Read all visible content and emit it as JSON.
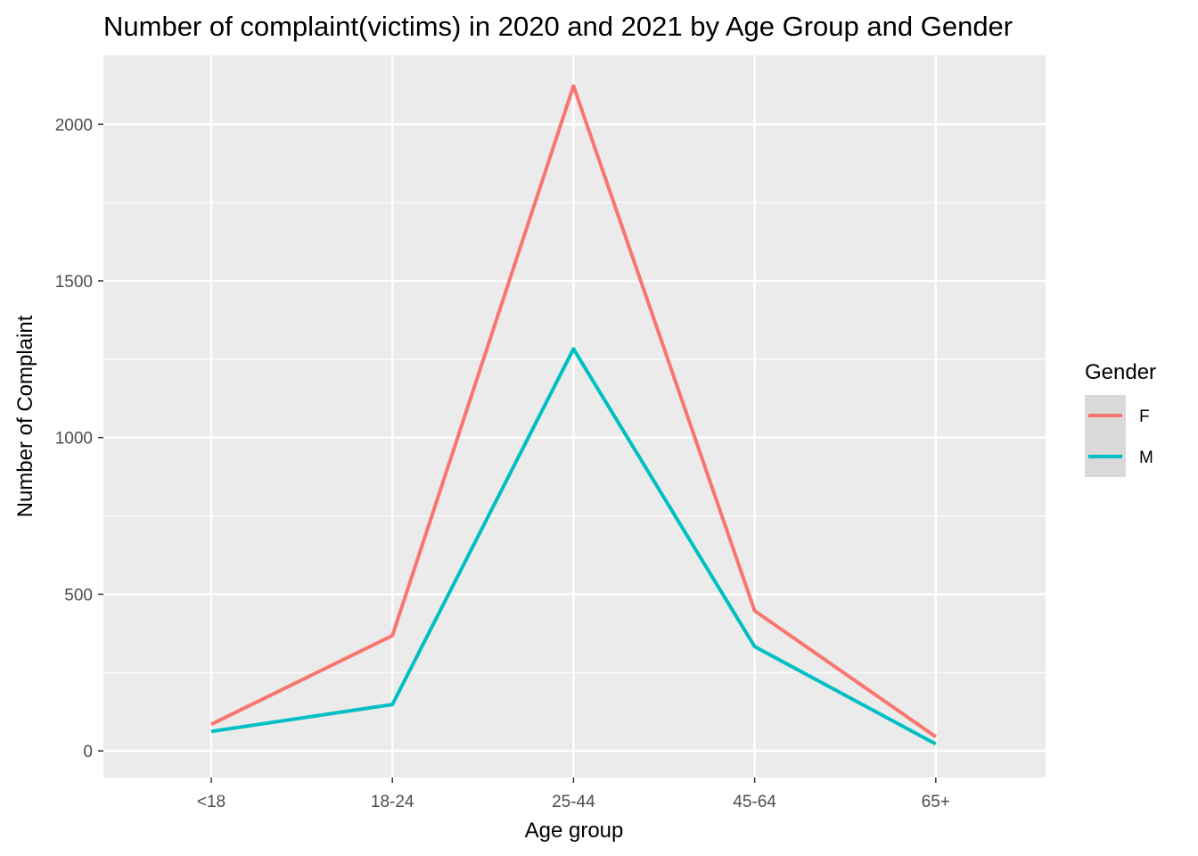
{
  "chart_data": {
    "type": "line",
    "title": "Number of complaint(victims) in 2020 and 2021 by Age Group and Gender",
    "xlabel": "Age group",
    "ylabel": "Number of Complaint",
    "categories": [
      "<18",
      "18-24",
      "25-44",
      "45-64",
      "65+"
    ],
    "yticks": [
      0,
      500,
      1000,
      1500,
      2000
    ],
    "ylim": [
      -85,
      2220
    ],
    "grid": true,
    "background": "#ebebeb",
    "gridColor": "#ffffff",
    "legend": {
      "title": "Gender",
      "placement": "right"
    },
    "series": [
      {
        "name": "F",
        "color": "#f8766d",
        "values": [
          85,
          368,
          2122,
          447,
          45
        ]
      },
      {
        "name": "M",
        "color": "#00bfc4",
        "values": [
          62,
          148,
          1283,
          333,
          22
        ]
      }
    ]
  }
}
